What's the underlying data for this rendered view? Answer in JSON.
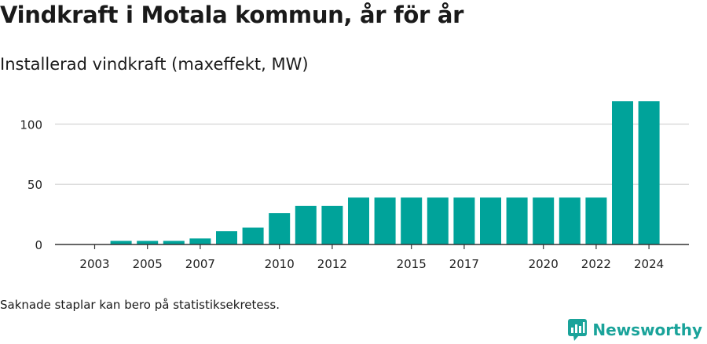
{
  "header": {
    "title": "Vindkraft i Motala kommun, år för år",
    "subtitle": "Installerad vindkraft (maxeffekt, MW)"
  },
  "footnote": "Saknade staplar kan bero på statistiksekretess.",
  "brand": {
    "name": "Newsworthy",
    "color": "#1aa39a",
    "icon": "newsworthy-logo-icon"
  },
  "chart_data": {
    "type": "bar",
    "title": "Vindkraft i Motala kommun, år för år",
    "subtitle": "Installerad vindkraft (maxeffekt, MW)",
    "xlabel": "",
    "ylabel": "",
    "categories": [
      2003,
      2004,
      2005,
      2006,
      2007,
      2008,
      2009,
      2010,
      2011,
      2012,
      2013,
      2014,
      2015,
      2016,
      2017,
      2018,
      2019,
      2020,
      2021,
      2022,
      2023,
      2024
    ],
    "values": [
      0,
      3,
      3,
      3,
      5,
      11,
      14,
      26,
      32,
      32,
      39,
      39,
      39,
      39,
      39,
      39,
      39,
      39,
      39,
      39,
      119,
      119
    ],
    "x_tick_labels": [
      "2003",
      "2005",
      "2007",
      "2010",
      "2012",
      "2015",
      "2017",
      "2020",
      "2022",
      "2024"
    ],
    "y_ticks": [
      0,
      50,
      100
    ],
    "ylim": [
      0,
      125
    ],
    "grid": true,
    "bar_color": "#00a39a"
  }
}
